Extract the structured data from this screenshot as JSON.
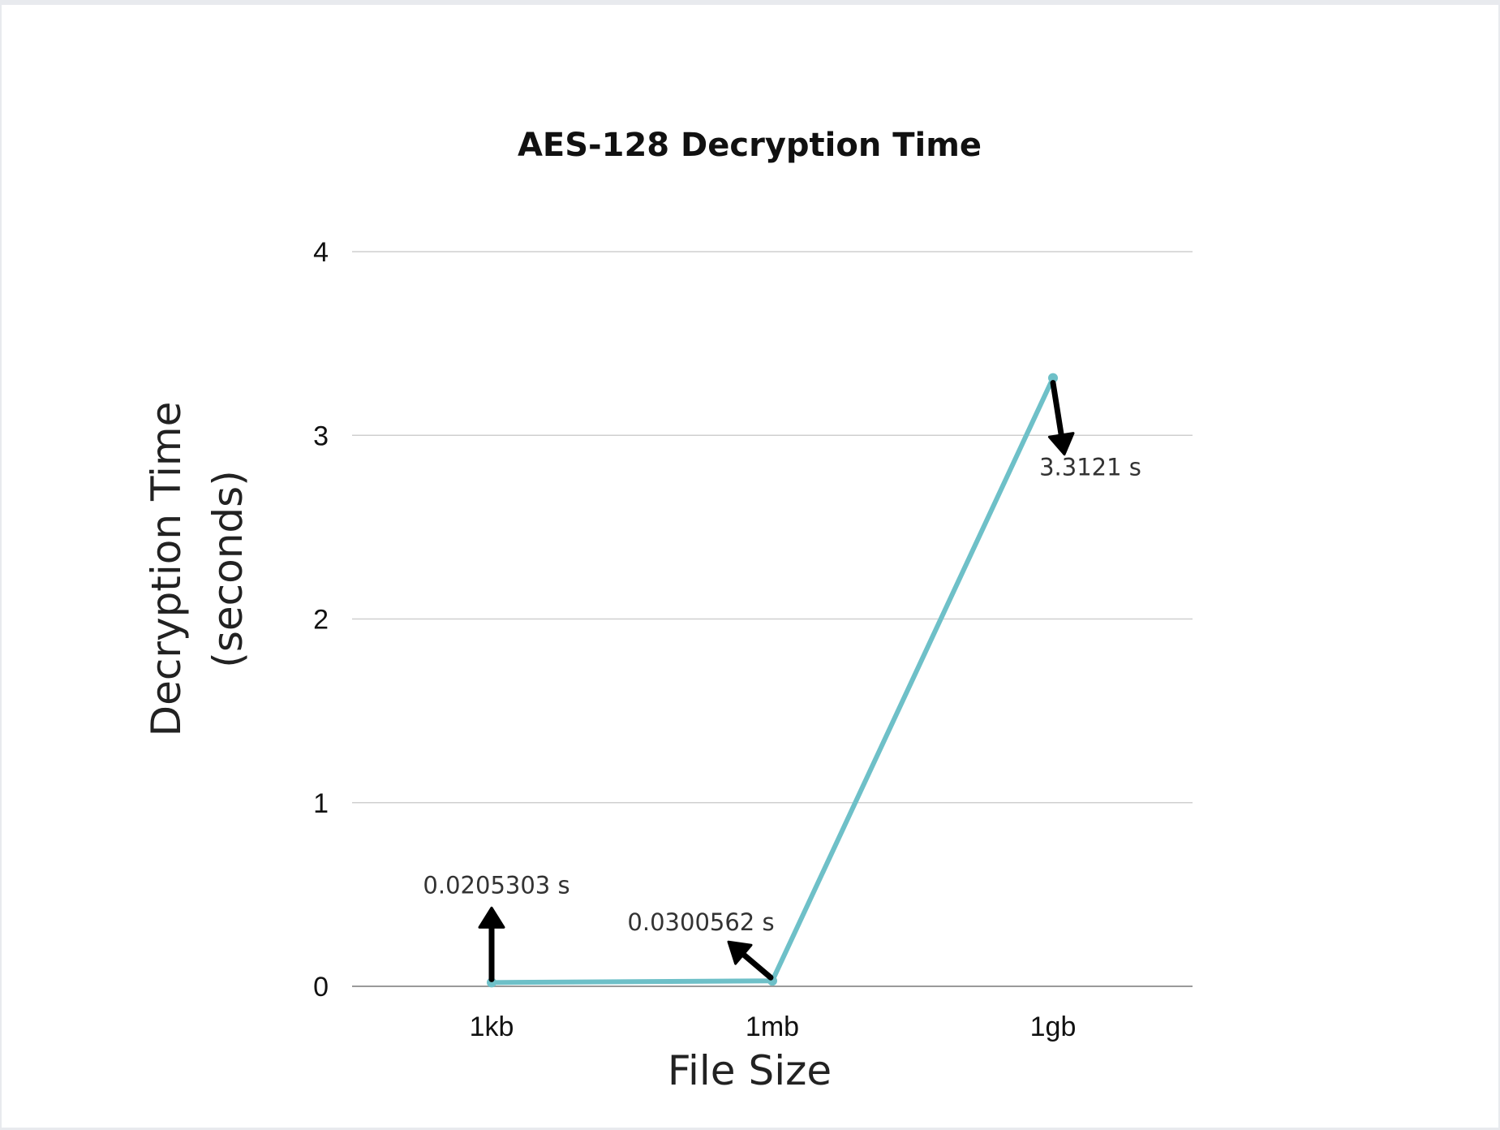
{
  "chart_data": {
    "type": "line",
    "title": "AES-128 Decryption Time",
    "xlabel": "File Size",
    "ylabel_lines": [
      "Decryption Time",
      "(seconds)"
    ],
    "categories": [
      "1kb",
      "1mb",
      "1gb"
    ],
    "series": [
      {
        "values": [
          0.0205303,
          0.0300562,
          3.3121
        ],
        "color": "#6ec0c8"
      }
    ],
    "ylim": [
      0,
      4
    ],
    "yticks": [
      "0",
      "1",
      "2",
      "3",
      "4"
    ],
    "grid": true,
    "annotations": [
      {
        "text": "0.0205303 s",
        "category": "1kb",
        "arrow_direction": "up"
      },
      {
        "text": "0.0300562 s",
        "category": "1mb",
        "arrow_direction": "up-left"
      },
      {
        "text": "3.3121 s",
        "category": "1gb",
        "arrow_direction": "down"
      }
    ],
    "colors": {
      "line": "#6ec0c8",
      "grid": "#cfcfcf",
      "axis": "#9a9a9a",
      "arrow": "#000000"
    }
  }
}
